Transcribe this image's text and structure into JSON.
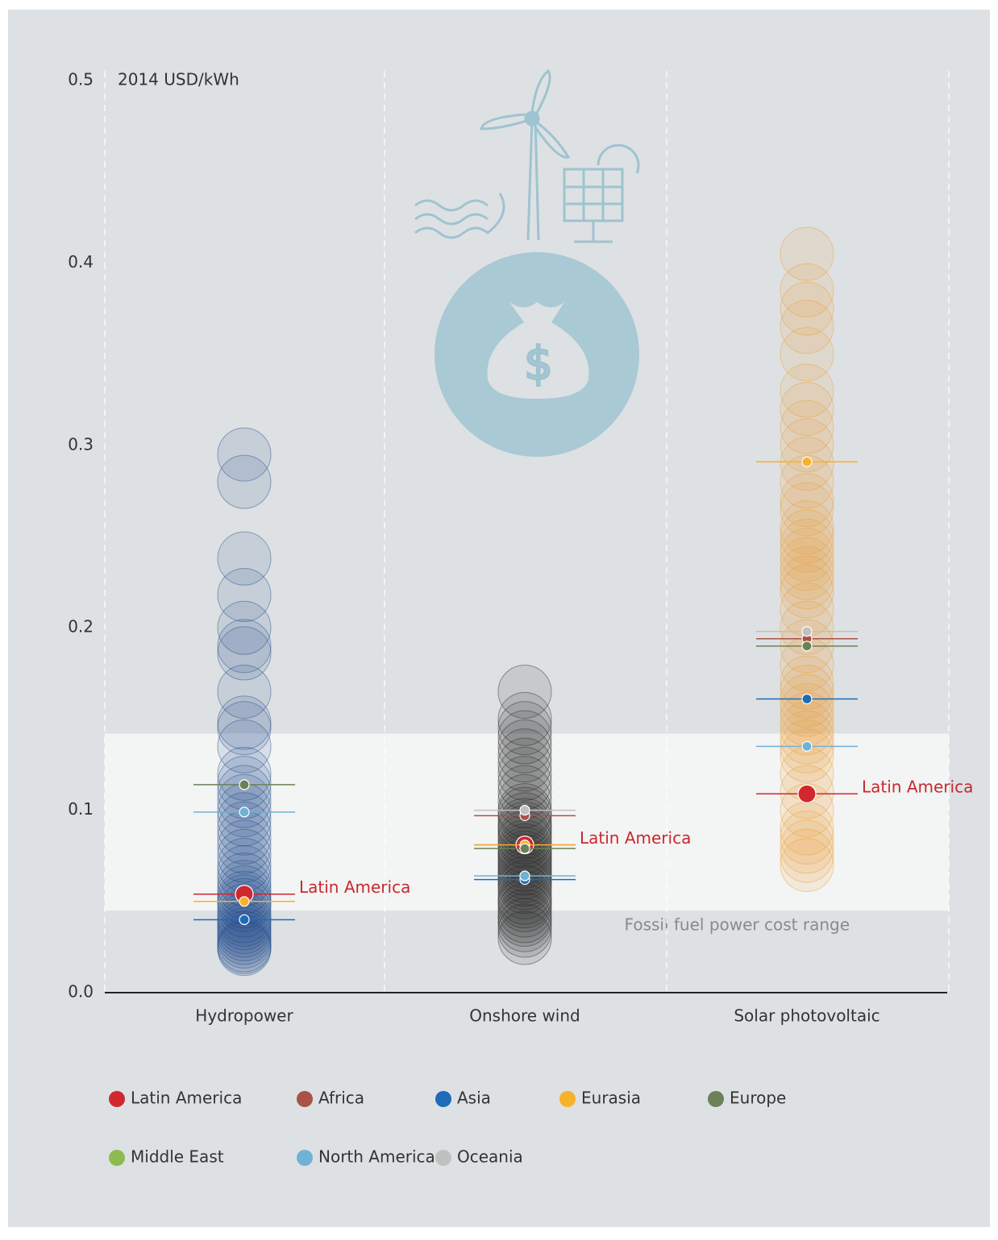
{
  "chart_data": {
    "type": "strip",
    "y_axis_label": "2014 USD/kWh",
    "categories": [
      "Hydropower",
      "Onshore wind",
      "Solar photovoltaic"
    ],
    "ylim": [
      0,
      0.5
    ],
    "yticks": [
      {
        "value": 0,
        "label": "0.0"
      },
      0.1,
      0.2,
      0.3,
      0.4,
      0.5
    ],
    "band": {
      "range": [
        0.045,
        0.142
      ],
      "label": "Fossil fuel power cost range",
      "color": "#f3f4f4"
    },
    "project_colors": [
      "#1f4e8c",
      "#2a2a2a",
      "#f0a030"
    ],
    "projects": [
      [
        0.295,
        0.28,
        0.238,
        0.218,
        0.2,
        0.19,
        0.186,
        0.165,
        0.148,
        0.145,
        0.135,
        0.12,
        0.115,
        0.11,
        0.105,
        0.1,
        0.095,
        0.09,
        0.085,
        0.08,
        0.075,
        0.07,
        0.066,
        0.062,
        0.058,
        0.055,
        0.052,
        0.05,
        0.048,
        0.045,
        0.042,
        0.04,
        0.038,
        0.036,
        0.034,
        0.032,
        0.03,
        0.028,
        0.026,
        0.025,
        0.024
      ],
      [
        0.165,
        0.15,
        0.145,
        0.14,
        0.135,
        0.13,
        0.125,
        0.12,
        0.115,
        0.11,
        0.105,
        0.1,
        0.098,
        0.095,
        0.092,
        0.09,
        0.088,
        0.085,
        0.083,
        0.08,
        0.078,
        0.076,
        0.074,
        0.072,
        0.07,
        0.068,
        0.066,
        0.064,
        0.062,
        0.06,
        0.058,
        0.055,
        0.052,
        0.05,
        0.048,
        0.045,
        0.042,
        0.04,
        0.037,
        0.034,
        0.03
      ],
      [
        0.405,
        0.385,
        0.375,
        0.365,
        0.35,
        0.33,
        0.32,
        0.31,
        0.3,
        0.29,
        0.28,
        0.27,
        0.265,
        0.255,
        0.25,
        0.245,
        0.24,
        0.235,
        0.23,
        0.225,
        0.22,
        0.21,
        0.2,
        0.19,
        0.18,
        0.17,
        0.165,
        0.16,
        0.155,
        0.15,
        0.145,
        0.14,
        0.135,
        0.13,
        0.12,
        0.11,
        0.1,
        0.09,
        0.085,
        0.08,
        0.075,
        0.07
      ]
    ],
    "series": [
      {
        "name": "Latin America",
        "color": "#d0282e",
        "values": [
          0.054,
          0.081,
          0.109
        ]
      },
      {
        "name": "Africa",
        "color": "#a85248",
        "values": [
          null,
          0.097,
          0.194
        ]
      },
      {
        "name": "Asia",
        "color": "#1e6bb8",
        "values": [
          0.04,
          0.062,
          0.161
        ]
      },
      {
        "name": "Eurasia",
        "color": "#f7b12a",
        "values": [
          0.05,
          0.081,
          0.291
        ]
      },
      {
        "name": "Europe",
        "color": "#6b8257",
        "values": [
          0.114,
          0.079,
          0.19
        ]
      },
      {
        "name": "Middle East",
        "color": "#8dbb4f",
        "values": [
          null,
          null,
          null
        ]
      },
      {
        "name": "North America",
        "color": "#6fb2d4",
        "values": [
          0.099,
          0.064,
          0.135
        ]
      },
      {
        "name": "Oceania",
        "color": "#c0c0c0",
        "values": [
          null,
          0.1,
          0.198
        ]
      }
    ]
  }
}
